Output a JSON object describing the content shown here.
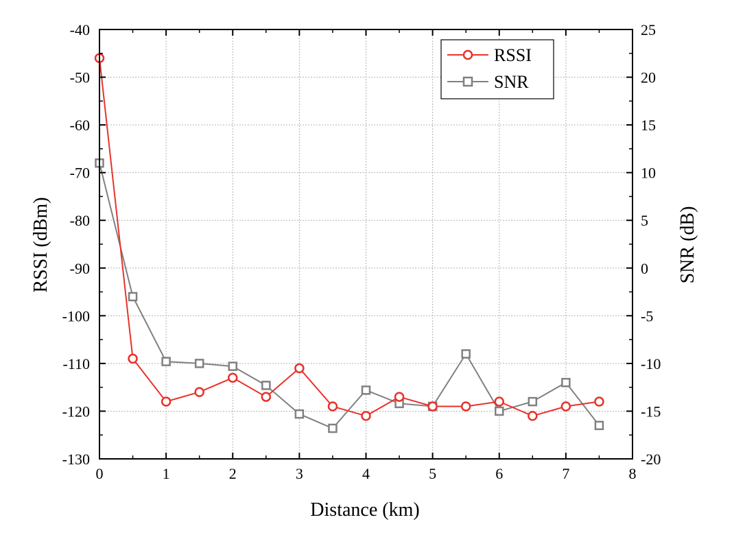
{
  "chart_data": {
    "type": "line",
    "xlabel": "Distance (km)",
    "ylabel_left": "RSSI (dBm)",
    "ylabel_right": "SNR (dB)",
    "xlim": [
      0,
      8
    ],
    "ylim_left": [
      -130,
      -40
    ],
    "ylim_right": [
      -20,
      25
    ],
    "x_ticks": [
      "0",
      "1",
      "2",
      "3",
      "4",
      "5",
      "6",
      "7",
      "8"
    ],
    "y_left_ticks": [
      "-40",
      "-50",
      "-60",
      "-70",
      "-80",
      "-90",
      "-100",
      "-110",
      "-120",
      "-130"
    ],
    "y_right_ticks": [
      "25",
      "20",
      "15",
      "10",
      "5",
      "0",
      "-5",
      "-10",
      "-15",
      "-20"
    ],
    "grid": true,
    "legend_position": "top-right",
    "x": [
      0,
      0.5,
      1,
      1.5,
      2,
      2.5,
      3,
      3.5,
      4,
      4.5,
      5,
      5.5,
      6,
      6.5,
      7,
      7.5
    ],
    "series": [
      {
        "name": "RSSI",
        "axis": "left",
        "color": "#e8322a",
        "marker": "circle",
        "values": [
          -46,
          -109,
          -118,
          -116,
          -113,
          -117,
          -111,
          -119,
          -121,
          -117,
          -119,
          -119,
          -118,
          -121,
          -119,
          -118
        ]
      },
      {
        "name": "SNR",
        "axis": "right",
        "color": "#808080",
        "marker": "square",
        "values": [
          11,
          -3,
          -9.8,
          -10,
          -10.3,
          -12.3,
          -15.3,
          -16.8,
          -12.8,
          -14.2,
          -14.5,
          -9,
          -15,
          -14,
          -12,
          -16.5
        ]
      }
    ]
  }
}
